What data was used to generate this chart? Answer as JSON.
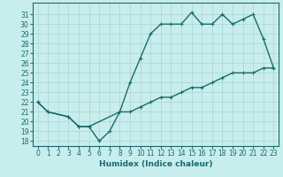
{
  "xlabel": "Humidex (Indice chaleur)",
  "bg_color": "#c8eded",
  "line_color": "#1a6b6b",
  "grid_color": "#b0d8d8",
  "xlim": [
    -0.5,
    23.5
  ],
  "ylim": [
    17.5,
    32.2
  ],
  "xticks": [
    0,
    1,
    2,
    3,
    4,
    5,
    6,
    7,
    8,
    9,
    10,
    11,
    12,
    13,
    14,
    15,
    16,
    17,
    18,
    19,
    20,
    21,
    22,
    23
  ],
  "yticks": [
    18,
    19,
    20,
    21,
    22,
    23,
    24,
    25,
    26,
    27,
    28,
    29,
    30,
    31
  ],
  "upper_x": [
    0,
    1,
    3,
    4,
    5,
    8,
    9,
    10,
    11,
    12,
    13,
    14,
    15,
    16,
    17,
    18,
    19,
    20,
    21,
    22,
    23
  ],
  "upper_y": [
    22.0,
    21.0,
    20.5,
    19.5,
    19.5,
    21.0,
    24.0,
    26.5,
    29.0,
    30.0,
    30.0,
    30.0,
    31.2,
    30.0,
    30.0,
    31.0,
    30.0,
    30.5,
    31.0,
    28.5,
    25.5
  ],
  "lower_x": [
    0,
    1,
    3,
    4,
    5,
    6,
    7,
    8,
    9,
    10,
    11,
    12,
    13,
    14,
    15,
    16,
    17,
    18,
    19,
    20,
    21,
    22,
    23
  ],
  "lower_y": [
    22.0,
    21.0,
    20.5,
    19.5,
    19.5,
    18.0,
    19.0,
    21.0,
    21.0,
    21.5,
    22.0,
    22.5,
    22.5,
    23.0,
    23.5,
    23.5,
    24.0,
    24.5,
    25.0,
    25.0,
    25.0,
    25.5,
    25.5
  ],
  "marker_size": 3.5,
  "line_width": 1.0,
  "tick_fontsize": 5.5,
  "xlabel_fontsize": 6.5
}
